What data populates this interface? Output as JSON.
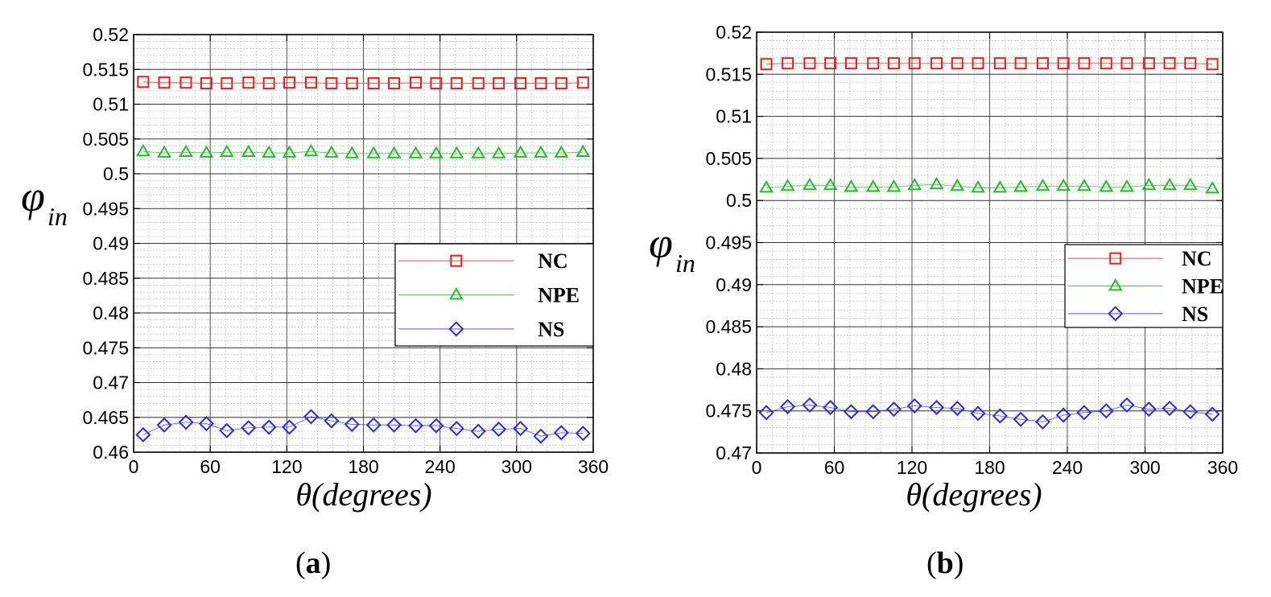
{
  "chart_data": [
    {
      "type": "line",
      "panel": "a",
      "caption": "a",
      "xlabel": "θ(degrees)",
      "ylabel_main": "φ",
      "ylabel_sub": "in",
      "xlim": [
        0,
        360
      ],
      "ylim": [
        0.46,
        0.52
      ],
      "xticks": [
        0,
        60,
        120,
        180,
        240,
        300,
        360
      ],
      "xtick_labels": [
        "0",
        "60",
        "120",
        "180",
        "240",
        "300",
        "360"
      ],
      "yticks": [
        0.46,
        0.465,
        0.47,
        0.475,
        0.48,
        0.485,
        0.49,
        0.495,
        0.5,
        0.505,
        0.51,
        0.515,
        0.52
      ],
      "ytick_labels": [
        "0.46",
        "0.465",
        "0.47",
        "0.475",
        "0.48",
        "0.485",
        "0.49",
        "0.495",
        "0.5",
        "0.505",
        "0.51",
        "0.515",
        "0.52"
      ],
      "grid": true,
      "legend_position": "middle-right",
      "x": [
        7.5,
        24,
        41,
        57,
        73,
        90,
        106,
        122,
        139,
        155,
        171,
        188,
        204,
        221,
        237,
        253,
        270,
        286,
        303,
        319,
        335,
        352
      ],
      "series": [
        {
          "name": "NC",
          "marker": "square",
          "color": "#ee1c1c",
          "values": [
            0.5132,
            0.5131,
            0.5131,
            0.513,
            0.513,
            0.5131,
            0.513,
            0.5131,
            0.5131,
            0.513,
            0.513,
            0.513,
            0.513,
            0.5131,
            0.513,
            0.513,
            0.513,
            0.513,
            0.513,
            0.513,
            0.513,
            0.5131
          ]
        },
        {
          "name": "NPE",
          "marker": "triangle",
          "color": "#1fc21f",
          "values": [
            0.5032,
            0.503,
            0.5031,
            0.503,
            0.5031,
            0.5031,
            0.503,
            0.503,
            0.5032,
            0.503,
            0.5029,
            0.5029,
            0.5029,
            0.5029,
            0.5029,
            0.5029,
            0.5029,
            0.5029,
            0.503,
            0.503,
            0.503,
            0.5031
          ]
        },
        {
          "name": "NS",
          "marker": "diamond",
          "color": "#2b2bf0",
          "values": [
            0.4625,
            0.4639,
            0.4643,
            0.4641,
            0.4631,
            0.4635,
            0.4636,
            0.4636,
            0.4651,
            0.4645,
            0.464,
            0.4639,
            0.4639,
            0.4638,
            0.4638,
            0.4634,
            0.463,
            0.4633,
            0.4634,
            0.4623,
            0.4628,
            0.4627
          ]
        }
      ]
    },
    {
      "type": "line",
      "panel": "b",
      "caption": "b",
      "xlabel": "θ(degrees)",
      "ylabel_main": "φ",
      "ylabel_sub": "in",
      "xlim": [
        0,
        360
      ],
      "ylim": [
        0.47,
        0.52
      ],
      "xticks": [
        0,
        60,
        120,
        180,
        240,
        300,
        360
      ],
      "xtick_labels": [
        "0",
        "60",
        "120",
        "180",
        "240",
        "300",
        "360"
      ],
      "yticks": [
        0.47,
        0.475,
        0.48,
        0.485,
        0.49,
        0.495,
        0.5,
        0.505,
        0.51,
        0.515,
        0.52
      ],
      "ytick_labels": [
        "0.47",
        "0.475",
        "0.48",
        "0.485",
        "0.49",
        "0.495",
        "0.5",
        "0.505",
        "0.51",
        "0.515",
        "0.52"
      ],
      "grid": true,
      "legend_position": "middle-right",
      "x": [
        7.5,
        24,
        41,
        57,
        73,
        90,
        106,
        122,
        139,
        155,
        171,
        188,
        204,
        221,
        237,
        253,
        270,
        286,
        303,
        319,
        335,
        352
      ],
      "series": [
        {
          "name": "NC",
          "marker": "square",
          "color": "#ee1c1c",
          "values": [
            0.5162,
            0.5163,
            0.5163,
            0.5163,
            0.5163,
            0.5163,
            0.5163,
            0.5163,
            0.5163,
            0.5163,
            0.5163,
            0.5163,
            0.5163,
            0.5163,
            0.5163,
            0.5163,
            0.5163,
            0.5163,
            0.5163,
            0.5163,
            0.5163,
            0.5162
          ]
        },
        {
          "name": "NPE",
          "marker": "triangle",
          "color": "#1fc21f",
          "values": [
            0.5015,
            0.5017,
            0.5018,
            0.5018,
            0.5016,
            0.5016,
            0.5016,
            0.5018,
            0.5019,
            0.5017,
            0.5015,
            0.5015,
            0.5016,
            0.5017,
            0.5017,
            0.5017,
            0.5016,
            0.5016,
            0.5018,
            0.5018,
            0.5018,
            0.5014
          ]
        },
        {
          "name": "NS",
          "marker": "diamond",
          "color": "#2b2bf0",
          "values": [
            0.4748,
            0.4755,
            0.4757,
            0.4754,
            0.4749,
            0.4749,
            0.4752,
            0.4756,
            0.4754,
            0.4753,
            0.4747,
            0.4744,
            0.474,
            0.4737,
            0.4745,
            0.4748,
            0.475,
            0.4757,
            0.4752,
            0.4753,
            0.4749,
            0.4746
          ]
        }
      ]
    }
  ]
}
